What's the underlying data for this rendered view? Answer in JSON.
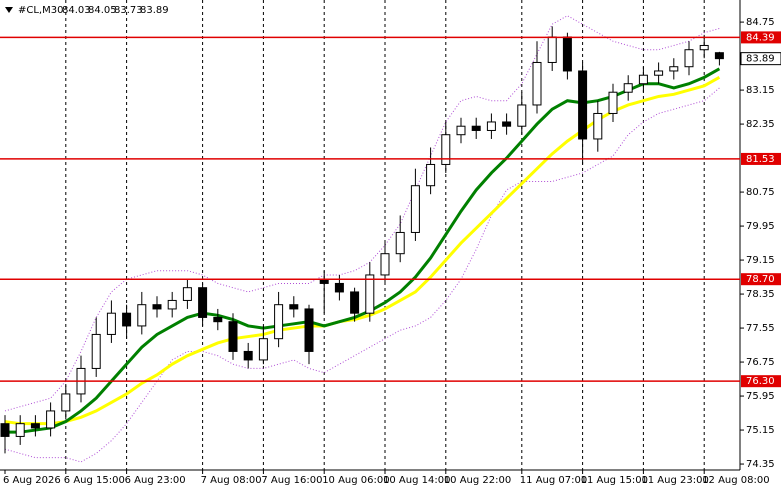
{
  "chart_data": {
    "type": "candlestick",
    "title": "#CL,M30",
    "categories": [
      "6 Aug 2026",
      null,
      null,
      null,
      "6 Aug 15:00",
      null,
      null,
      null,
      "6 Aug 23:00",
      null,
      null,
      null,
      null,
      "7 Aug 08:00",
      null,
      null,
      null,
      "7 Aug 16:00",
      null,
      null,
      null,
      "10 Aug 06:00",
      null,
      null,
      null,
      "10 Aug 14:00",
      null,
      null,
      null,
      "10 Aug 22:00",
      null,
      null,
      null,
      null,
      "11 Aug 07:00",
      null,
      null,
      null,
      "11 Aug 15:00",
      null,
      null,
      null,
      "11 Aug 23:00",
      null,
      null,
      null,
      "12 Aug 08:00",
      null
    ],
    "open": [
      75.3,
      75.0,
      75.3,
      75.2,
      75.6,
      76.0,
      76.6,
      77.4,
      77.9,
      77.6,
      78.1,
      78.0,
      78.2,
      78.5,
      77.8,
      77.7,
      77.0,
      76.8,
      77.3,
      78.1,
      78.0,
      78.7,
      78.6,
      78.4,
      77.9,
      78.8,
      79.3,
      79.8,
      80.9,
      81.4,
      82.1,
      82.3,
      82.2,
      82.4,
      82.3,
      82.8,
      83.8,
      84.4,
      83.6,
      82.0,
      82.6,
      83.1,
      83.3,
      83.5,
      83.6,
      83.7,
      84.1,
      84.03
    ],
    "high": [
      75.5,
      75.5,
      75.5,
      75.8,
      76.2,
      76.9,
      77.8,
      78.2,
      78.1,
      78.4,
      78.3,
      78.4,
      78.7,
      78.6,
      78.0,
      77.9,
      77.2,
      77.6,
      78.4,
      78.3,
      78.1,
      78.9,
      78.8,
      78.5,
      79.1,
      79.6,
      80.2,
      81.3,
      81.8,
      82.4,
      82.5,
      82.5,
      82.6,
      82.6,
      83.1,
      84.3,
      84.65,
      84.5,
      83.8,
      82.9,
      83.3,
      83.5,
      83.7,
      83.8,
      83.9,
      84.3,
      84.45,
      84.05
    ],
    "low": [
      74.6,
      74.8,
      75.0,
      75.0,
      75.4,
      75.8,
      76.4,
      77.2,
      77.3,
      77.4,
      77.8,
      77.8,
      78.0,
      77.6,
      77.5,
      76.8,
      76.6,
      76.7,
      77.1,
      77.8,
      76.7,
      77.9,
      78.2,
      77.7,
      77.7,
      78.6,
      79.1,
      79.6,
      80.7,
      81.2,
      81.9,
      82.0,
      82.0,
      82.1,
      82.1,
      82.6,
      83.6,
      83.4,
      81.4,
      81.7,
      82.4,
      82.9,
      83.1,
      83.3,
      83.4,
      83.5,
      83.9,
      83.73
    ],
    "close": [
      75.0,
      75.3,
      75.2,
      75.6,
      76.0,
      76.6,
      77.4,
      77.9,
      77.6,
      78.1,
      78.0,
      78.2,
      78.5,
      77.8,
      77.7,
      77.0,
      76.8,
      77.3,
      78.1,
      78.0,
      77.0,
      78.6,
      78.4,
      77.9,
      78.8,
      79.3,
      79.8,
      80.9,
      81.4,
      82.1,
      82.3,
      82.2,
      82.4,
      82.3,
      82.8,
      83.8,
      84.4,
      83.6,
      82.0,
      82.6,
      83.1,
      83.3,
      83.5,
      83.6,
      83.7,
      84.1,
      84.2,
      83.89
    ],
    "series": [
      {
        "color": "#b04fd6",
        "style": "dotted",
        "values": [
          75.6,
          75.7,
          75.8,
          75.9,
          76.3,
          77.0,
          77.8,
          78.4,
          78.7,
          78.8,
          78.9,
          78.9,
          78.9,
          78.8,
          78.6,
          78.5,
          78.4,
          78.5,
          78.6,
          78.6,
          78.6,
          78.8,
          78.8,
          78.9,
          79.1,
          79.5,
          80.0,
          80.8,
          81.6,
          82.4,
          82.9,
          83.0,
          82.9,
          82.9,
          83.3,
          84.0,
          84.7,
          84.9,
          84.7,
          84.5,
          84.3,
          84.2,
          84.1,
          84.1,
          84.2,
          84.3,
          84.5,
          84.6
        ]
      },
      {
        "color": "#b04fd6",
        "style": "dotted",
        "values": [
          74.7,
          74.6,
          74.5,
          74.5,
          74.5,
          74.4,
          74.6,
          74.9,
          75.3,
          75.8,
          76.3,
          76.8,
          77.0,
          77.0,
          76.9,
          76.7,
          76.6,
          76.6,
          76.7,
          76.8,
          76.6,
          76.5,
          76.7,
          76.9,
          77.1,
          77.3,
          77.5,
          77.6,
          77.8,
          78.2,
          78.7,
          79.4,
          80.2,
          80.8,
          81.0,
          81.0,
          81.0,
          81.1,
          81.2,
          81.4,
          81.6,
          82.1,
          82.4,
          82.6,
          82.7,
          82.8,
          82.9,
          83.2
        ]
      },
      {
        "color": "#ffff00",
        "style": "solid",
        "values": [
          75.35,
          75.3,
          75.3,
          75.3,
          75.35,
          75.45,
          75.6,
          75.8,
          76.0,
          76.25,
          76.45,
          76.7,
          76.9,
          77.05,
          77.2,
          77.3,
          77.35,
          77.4,
          77.5,
          77.55,
          77.6,
          77.6,
          77.7,
          77.75,
          77.85,
          78.0,
          78.2,
          78.4,
          78.75,
          79.15,
          79.55,
          79.9,
          80.25,
          80.6,
          80.95,
          81.3,
          81.65,
          81.95,
          82.2,
          82.45,
          82.65,
          82.8,
          82.9,
          83.0,
          83.05,
          83.15,
          83.25,
          83.45
        ]
      },
      {
        "color": "#008000",
        "style": "solid",
        "values": [
          75.1,
          75.1,
          75.15,
          75.2,
          75.35,
          75.6,
          75.9,
          76.3,
          76.7,
          77.1,
          77.4,
          77.6,
          77.8,
          77.9,
          77.85,
          77.75,
          77.6,
          77.55,
          77.6,
          77.65,
          77.7,
          77.6,
          77.7,
          77.8,
          77.95,
          78.15,
          78.4,
          78.75,
          79.2,
          79.75,
          80.3,
          80.8,
          81.2,
          81.55,
          81.95,
          82.35,
          82.7,
          82.9,
          82.85,
          82.9,
          83.0,
          83.15,
          83.3,
          83.3,
          83.2,
          83.3,
          83.45,
          83.65
        ]
      }
    ],
    "ylim": [
      74.21,
      85.27
    ],
    "yticks": [
      84.75,
      83.15,
      82.35,
      80.75,
      79.95,
      79.15,
      78.35,
      77.55,
      76.75,
      75.95,
      75.15,
      74.35
    ],
    "levels": [
      84.39,
      81.53,
      {
        "value": 78.7,
        "label": "78.70"
      },
      {
        "value": 76.3,
        "label": "76.30"
      }
    ],
    "level_color": "#e00000",
    "grid": true
  }
}
